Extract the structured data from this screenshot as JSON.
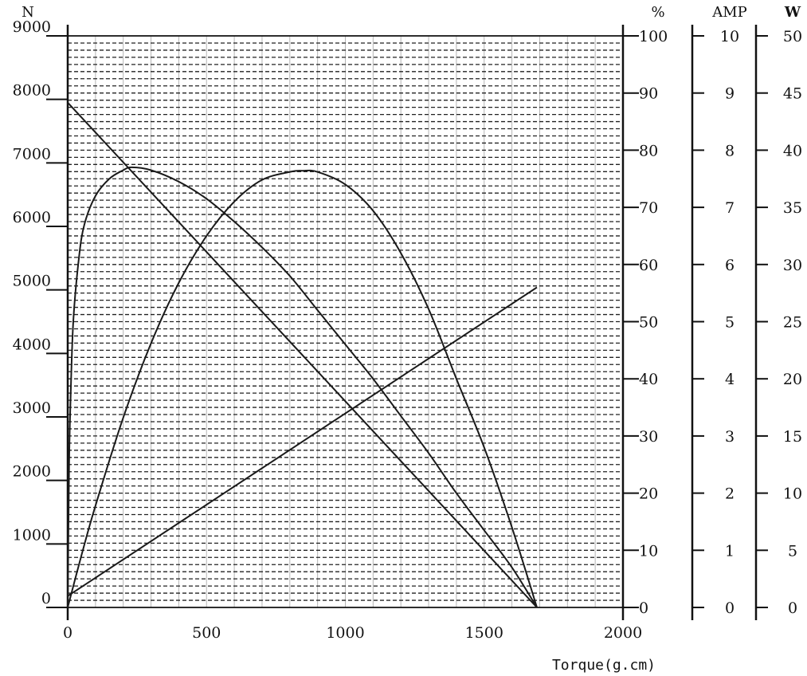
{
  "chart_data": {
    "type": "line",
    "xlabel": "Torque(g.cm)",
    "xlim": [
      0,
      2000
    ],
    "x_ticks": [
      "0",
      "500",
      "1000",
      "1500",
      "2000"
    ],
    "grid": true,
    "axes": [
      {
        "id": "n",
        "title": "N",
        "side": "left",
        "range": [
          0,
          9000
        ],
        "ticks": [
          "0",
          "1000",
          "2000",
          "3000",
          "4000",
          "5000",
          "6000",
          "7000",
          "8000",
          "9000"
        ]
      },
      {
        "id": "pct",
        "title": "%",
        "side": "right",
        "range": [
          0,
          100
        ],
        "ticks": [
          "0",
          "10",
          "20",
          "30",
          "40",
          "50",
          "60",
          "70",
          "80",
          "90",
          "100"
        ]
      },
      {
        "id": "amp",
        "title": "AMP",
        "side": "right",
        "range": [
          0,
          10
        ],
        "ticks": [
          "0",
          "1",
          "2",
          "3",
          "4",
          "5",
          "6",
          "7",
          "8",
          "9",
          "10"
        ]
      },
      {
        "id": "w",
        "title": "W",
        "side": "right",
        "range": [
          0,
          50
        ],
        "ticks": [
          "0",
          "5",
          "10",
          "15",
          "20",
          "25",
          "30",
          "35",
          "40",
          "45",
          "50"
        ]
      }
    ],
    "series": [
      {
        "axis": "n",
        "x": [
          0,
          1690
        ],
        "y": [
          7950,
          0
        ]
      },
      {
        "axis": "pct",
        "x": [
          0,
          5,
          10,
          20,
          40,
          60,
          100,
          150,
          200,
          230,
          300,
          400,
          500,
          600,
          700,
          800,
          900,
          1000,
          1100,
          1200,
          1300,
          1400,
          1500,
          1600,
          1690
        ],
        "y": [
          0,
          25,
          36,
          50,
          61,
          67,
          72,
          75,
          76.5,
          77,
          76.5,
          74.5,
          71.5,
          67.5,
          63,
          58,
          52,
          46,
          40,
          33.5,
          27,
          20,
          13.5,
          7,
          0
        ]
      },
      {
        "axis": "amp",
        "x": [
          0,
          1690
        ],
        "y": [
          0.2,
          5.6
        ]
      },
      {
        "axis": "w",
        "x": [
          0,
          50,
          100,
          200,
          300,
          400,
          500,
          600,
          700,
          800,
          845,
          900,
          1000,
          1100,
          1200,
          1300,
          1400,
          1500,
          1600,
          1690
        ],
        "y": [
          0,
          4.6,
          8.9,
          16.6,
          23.1,
          28.4,
          32.5,
          35.5,
          37.4,
          38.1,
          38.2,
          38.1,
          37.0,
          34.7,
          31.0,
          26.1,
          20.0,
          14.0,
          7.0,
          0
        ]
      }
    ]
  }
}
